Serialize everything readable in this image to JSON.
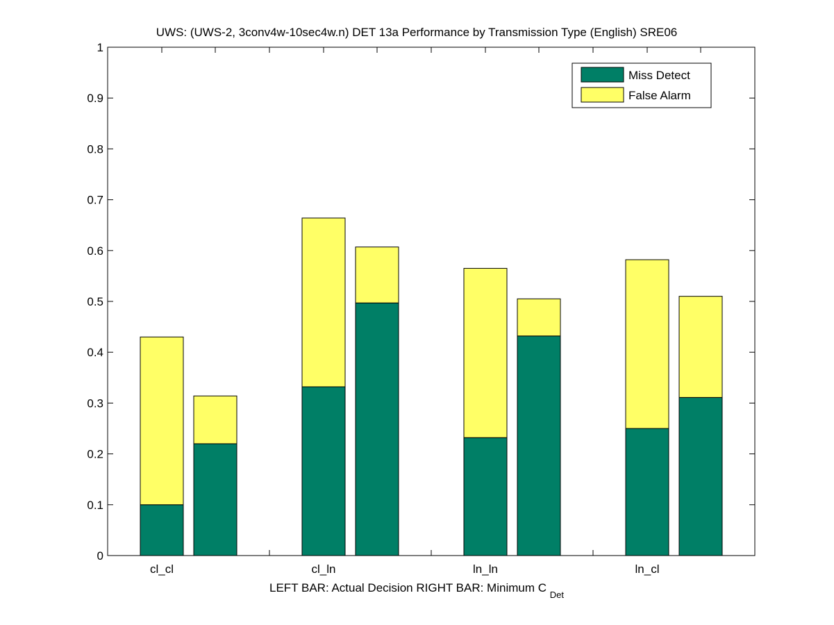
{
  "chart_data": {
    "type": "bar",
    "stacked": true,
    "title": "UWS: (UWS-2, 3conv4w-10sec4w.n) DET 13a Performance by Transmission Type (English) SRE06",
    "xlabel_left": "LEFT BAR: Actual Decision",
    "xlabel_right_main": "RIGHT BAR: Minimum C",
    "xlabel_right_sub": "Det",
    "ylabel": "",
    "ylim": [
      0,
      1
    ],
    "yticks": [
      "0",
      "0.1",
      "0.2",
      "0.3",
      "0.4",
      "0.5",
      "0.6",
      "0.7",
      "0.8",
      "0.9",
      "1"
    ],
    "categories": [
      "cl_cl",
      "cl_ln",
      "ln_ln",
      "ln_cl"
    ],
    "bars_per_category": [
      "Actual Decision",
      "Minimum C_Det"
    ],
    "series": [
      {
        "name": "Miss Detect",
        "color": "#007f66",
        "actual": [
          0.1,
          0.332,
          0.232,
          0.25
        ],
        "minimum": [
          0.22,
          0.497,
          0.432,
          0.311
        ]
      },
      {
        "name": "False Alarm",
        "color": "#ffff66",
        "actual": [
          0.33,
          0.332,
          0.333,
          0.332
        ],
        "minimum": [
          0.094,
          0.11,
          0.073,
          0.199
        ]
      }
    ],
    "totals": {
      "actual": [
        0.43,
        0.664,
        0.565,
        0.582
      ],
      "minimum": [
        0.314,
        0.607,
        0.505,
        0.51
      ]
    },
    "legend": {
      "position": "top-right",
      "entries": [
        "Miss Detect",
        "False Alarm"
      ]
    },
    "grid": false
  }
}
